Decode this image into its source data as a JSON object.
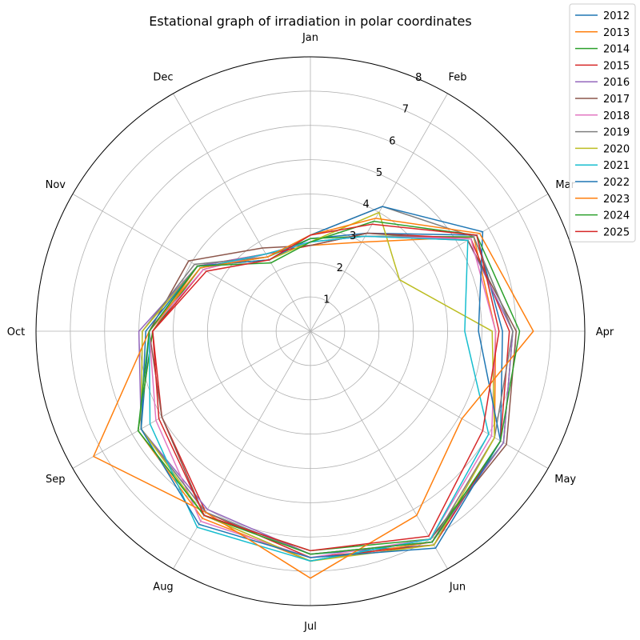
{
  "chart_data": {
    "type": "radar",
    "title": "Estational graph of irradiation in polar coordinates",
    "categories": [
      "Jan",
      "Feb",
      "Mar",
      "Apr",
      "May",
      "Jun",
      "Jul",
      "Aug",
      "Sep",
      "Oct",
      "Nov",
      "Dec"
    ],
    "radial_ticks": [
      "1",
      "2",
      "3",
      "4",
      "5",
      "6",
      "7",
      "8"
    ],
    "rlim": [
      0,
      8
    ],
    "grid": true,
    "legend_position": "top-right",
    "series": [
      {
        "name": "2012",
        "color": "#1f77b4",
        "values": [
          2.7,
          3.3,
          5.6,
          5.6,
          6.4,
          7.2,
          6.5,
          6.1,
          5.7,
          4.7,
          3.8,
          2.4
        ]
      },
      {
        "name": "2013",
        "color": "#ff7f0e",
        "values": [
          2.5,
          3.0,
          5.5,
          5.4,
          6.2,
          7.1,
          6.7,
          6.3,
          5.8,
          4.6,
          3.8,
          2.6
        ]
      },
      {
        "name": "2014",
        "color": "#2ca02c",
        "values": [
          2.7,
          3.2,
          5.5,
          5.9,
          6.5,
          7.0,
          6.4,
          6.2,
          5.8,
          4.6,
          3.7,
          2.5
        ]
      },
      {
        "name": "2015",
        "color": "#d62728",
        "values": [
          2.5,
          3.3,
          5.4,
          5.8,
          6.4,
          7.2,
          6.6,
          6.1,
          5.0,
          4.6,
          3.6,
          2.6
        ]
      },
      {
        "name": "2016",
        "color": "#9467bd",
        "values": [
          2.6,
          3.2,
          5.3,
          5.9,
          6.5,
          7.1,
          6.5,
          6.0,
          5.7,
          5.0,
          3.8,
          2.6
        ]
      },
      {
        "name": "2017",
        "color": "#8c564b",
        "values": [
          2.5,
          3.3,
          5.3,
          6.0,
          6.6,
          7.0,
          6.7,
          6.2,
          5.0,
          4.7,
          4.1,
          2.8
        ]
      },
      {
        "name": "2018",
        "color": "#e377c2",
        "values": [
          2.6,
          3.2,
          5.4,
          5.4,
          6.1,
          7.0,
          6.6,
          6.4,
          5.2,
          4.7,
          3.6,
          2.6
        ]
      },
      {
        "name": "2019",
        "color": "#7f7f7f",
        "values": [
          2.8,
          4.2,
          5.5,
          5.9,
          6.2,
          7.1,
          6.5,
          6.1,
          5.7,
          4.9,
          3.9,
          2.5
        ]
      },
      {
        "name": "2020",
        "color": "#bcbd22",
        "values": [
          2.6,
          4.0,
          3.0,
          5.3,
          6.2,
          7.2,
          6.7,
          6.2,
          5.7,
          4.9,
          3.8,
          2.4
        ]
      },
      {
        "name": "2021",
        "color": "#17becf",
        "values": [
          2.6,
          3.2,
          5.3,
          4.5,
          6.0,
          7.0,
          6.7,
          6.6,
          5.4,
          4.7,
          3.7,
          2.6
        ]
      },
      {
        "name": "2022",
        "color": "#1f77b4",
        "values": [
          2.8,
          4.2,
          5.8,
          4.9,
          6.4,
          7.3,
          6.6,
          6.5,
          5.7,
          4.8,
          3.8,
          2.4
        ]
      },
      {
        "name": "2023",
        "color": "#ff7f0e",
        "values": [
          2.8,
          3.8,
          5.7,
          6.5,
          5.1,
          6.2,
          7.2,
          6.1,
          7.3,
          4.7,
          3.7,
          2.5
        ]
      },
      {
        "name": "2024",
        "color": "#2ca02c",
        "values": [
          2.6,
          3.7,
          5.6,
          6.1,
          6.4,
          7.1,
          6.5,
          6.2,
          5.8,
          4.7,
          3.8,
          2.3
        ]
      },
      {
        "name": "2025",
        "color": "#d62728",
        "values": [
          2.8,
          3.6,
          5.6,
          5.5,
          5.8,
          6.9,
          6.4,
          6.2,
          5.1,
          4.6,
          3.5,
          2.4
        ]
      }
    ]
  }
}
